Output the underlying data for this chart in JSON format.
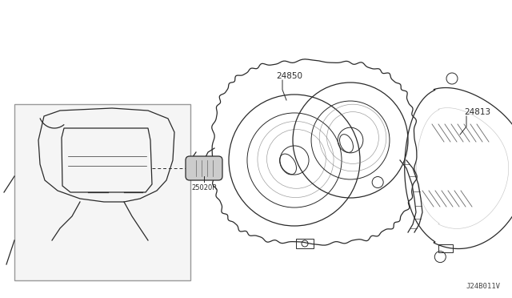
{
  "bg_color": "#ffffff",
  "line_color": "#2a2a2a",
  "diagram_code": "J24B011V",
  "fig_width": 6.4,
  "fig_height": 3.72,
  "dpi": 100
}
